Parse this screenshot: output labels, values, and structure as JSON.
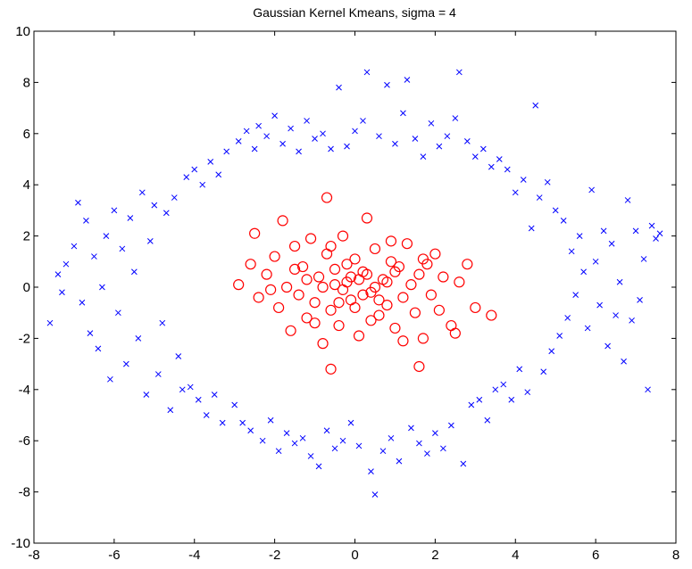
{
  "chart_data": {
    "type": "scatter",
    "title": "Gaussian Kernel Kmeans, sigma = 4",
    "xlabel": "",
    "ylabel": "",
    "xlim": [
      -8,
      8
    ],
    "ylim": [
      -10,
      10
    ],
    "xticks": [
      "-8",
      "-6",
      "-4",
      "-2",
      "0",
      "2",
      "4",
      "6",
      "8"
    ],
    "yticks": [
      "-10",
      "-8",
      "-6",
      "-4",
      "-2",
      "0",
      "2",
      "4",
      "6",
      "8",
      "10"
    ],
    "grid": false,
    "legend": "none",
    "series": [
      {
        "marker": "x",
        "color": "#0000ff",
        "points": [
          [
            -7.6,
            -1.4
          ],
          [
            -7.4,
            0.5
          ],
          [
            -7.3,
            -0.2
          ],
          [
            -7.2,
            0.9
          ],
          [
            -7.0,
            1.6
          ],
          [
            -6.9,
            3.3
          ],
          [
            -6.8,
            -0.6
          ],
          [
            -6.7,
            2.6
          ],
          [
            -6.6,
            -1.8
          ],
          [
            -6.5,
            1.2
          ],
          [
            -6.4,
            -2.4
          ],
          [
            -6.3,
            0.0
          ],
          [
            -6.2,
            2.0
          ],
          [
            -6.1,
            -3.6
          ],
          [
            -6.0,
            3.0
          ],
          [
            -5.9,
            -1.0
          ],
          [
            -5.8,
            1.5
          ],
          [
            -5.7,
            -3.0
          ],
          [
            -5.6,
            2.7
          ],
          [
            -5.5,
            0.6
          ],
          [
            -5.4,
            -2.0
          ],
          [
            -5.3,
            3.7
          ],
          [
            -5.2,
            -4.2
          ],
          [
            -5.1,
            1.8
          ],
          [
            -5.0,
            3.2
          ],
          [
            -4.9,
            -3.4
          ],
          [
            -4.8,
            -1.4
          ],
          [
            -4.7,
            2.9
          ],
          [
            -4.6,
            -4.8
          ],
          [
            -4.5,
            3.5
          ],
          [
            -4.4,
            -2.7
          ],
          [
            -4.3,
            -4.0
          ],
          [
            -4.2,
            4.3
          ],
          [
            -4.1,
            -3.9
          ],
          [
            -4.0,
            4.6
          ],
          [
            -3.9,
            -4.4
          ],
          [
            -3.8,
            4.0
          ],
          [
            -3.7,
            -5.0
          ],
          [
            -3.6,
            4.9
          ],
          [
            -3.5,
            -4.2
          ],
          [
            -3.4,
            4.4
          ],
          [
            -3.3,
            -5.3
          ],
          [
            -3.2,
            5.3
          ],
          [
            -3.0,
            -4.6
          ],
          [
            -2.9,
            5.7
          ],
          [
            -2.8,
            -5.3
          ],
          [
            -2.7,
            6.1
          ],
          [
            -2.6,
            -5.6
          ],
          [
            -2.5,
            5.4
          ],
          [
            -2.4,
            6.3
          ],
          [
            -2.3,
            -6.0
          ],
          [
            -2.2,
            5.9
          ],
          [
            -2.1,
            -5.2
          ],
          [
            -2.0,
            6.7
          ],
          [
            -1.9,
            -6.4
          ],
          [
            -1.8,
            5.6
          ],
          [
            -1.7,
            -5.7
          ],
          [
            -1.6,
            6.2
          ],
          [
            -1.5,
            -6.1
          ],
          [
            -1.4,
            5.3
          ],
          [
            -1.3,
            -5.9
          ],
          [
            -1.2,
            6.5
          ],
          [
            -1.1,
            -6.6
          ],
          [
            -1.0,
            5.8
          ],
          [
            -0.9,
            -7.0
          ],
          [
            -0.8,
            6.0
          ],
          [
            -0.7,
            -5.6
          ],
          [
            -0.6,
            5.4
          ],
          [
            -0.5,
            -6.3
          ],
          [
            -0.4,
            7.8
          ],
          [
            -0.3,
            -6.0
          ],
          [
            -0.2,
            5.5
          ],
          [
            -0.1,
            -5.3
          ],
          [
            0.0,
            6.1
          ],
          [
            0.1,
            -6.2
          ],
          [
            0.2,
            6.5
          ],
          [
            0.3,
            8.4
          ],
          [
            0.4,
            -7.2
          ],
          [
            0.5,
            -8.1
          ],
          [
            0.6,
            5.9
          ],
          [
            0.7,
            -6.4
          ],
          [
            0.8,
            7.9
          ],
          [
            0.9,
            -5.9
          ],
          [
            1.0,
            5.6
          ],
          [
            1.1,
            -6.8
          ],
          [
            1.2,
            6.8
          ],
          [
            1.3,
            8.1
          ],
          [
            1.4,
            -5.5
          ],
          [
            1.5,
            5.8
          ],
          [
            1.6,
            -6.1
          ],
          [
            1.7,
            5.1
          ],
          [
            1.8,
            -6.5
          ],
          [
            1.9,
            6.4
          ],
          [
            2.0,
            -5.7
          ],
          [
            2.1,
            5.5
          ],
          [
            2.2,
            -6.3
          ],
          [
            2.3,
            5.9
          ],
          [
            2.4,
            -5.4
          ],
          [
            2.5,
            6.6
          ],
          [
            2.6,
            8.4
          ],
          [
            2.7,
            -6.9
          ],
          [
            2.8,
            5.7
          ],
          [
            2.9,
            -4.6
          ],
          [
            3.0,
            5.1
          ],
          [
            3.1,
            -4.4
          ],
          [
            3.2,
            5.4
          ],
          [
            3.3,
            -5.2
          ],
          [
            3.4,
            4.7
          ],
          [
            3.5,
            -4.0
          ],
          [
            3.6,
            5.0
          ],
          [
            3.7,
            -3.8
          ],
          [
            3.8,
            4.6
          ],
          [
            3.9,
            -4.4
          ],
          [
            4.0,
            3.7
          ],
          [
            4.1,
            -3.2
          ],
          [
            4.2,
            4.2
          ],
          [
            4.3,
            -4.1
          ],
          [
            4.4,
            2.3
          ],
          [
            4.5,
            7.1
          ],
          [
            4.6,
            3.5
          ],
          [
            4.7,
            -3.3
          ],
          [
            4.8,
            4.1
          ],
          [
            4.9,
            -2.5
          ],
          [
            5.0,
            3.0
          ],
          [
            5.1,
            -1.9
          ],
          [
            5.2,
            2.6
          ],
          [
            5.3,
            -1.2
          ],
          [
            5.4,
            1.4
          ],
          [
            5.5,
            -0.3
          ],
          [
            5.6,
            2.0
          ],
          [
            5.7,
            0.6
          ],
          [
            5.8,
            -1.6
          ],
          [
            5.9,
            3.8
          ],
          [
            6.0,
            1.0
          ],
          [
            6.1,
            -0.7
          ],
          [
            6.2,
            2.2
          ],
          [
            6.3,
            -2.3
          ],
          [
            6.4,
            1.7
          ],
          [
            6.5,
            -1.1
          ],
          [
            6.6,
            0.2
          ],
          [
            6.7,
            -2.9
          ],
          [
            6.8,
            3.4
          ],
          [
            6.9,
            -1.3
          ],
          [
            7.0,
            2.2
          ],
          [
            7.1,
            -0.5
          ],
          [
            7.2,
            1.1
          ],
          [
            7.3,
            -4.0
          ],
          [
            7.4,
            2.4
          ],
          [
            7.5,
            1.9
          ],
          [
            7.6,
            2.1
          ]
        ]
      },
      {
        "marker": "o",
        "color": "#ff0000",
        "points": [
          [
            -2.9,
            0.1
          ],
          [
            -2.6,
            0.9
          ],
          [
            -2.5,
            2.1
          ],
          [
            -2.4,
            -0.4
          ],
          [
            -2.2,
            0.5
          ],
          [
            -2.0,
            1.2
          ],
          [
            -1.9,
            -0.8
          ],
          [
            -1.8,
            2.6
          ],
          [
            -1.7,
            0.0
          ],
          [
            -1.6,
            -1.7
          ],
          [
            -1.5,
            1.6
          ],
          [
            -1.4,
            -0.3
          ],
          [
            -1.3,
            0.8
          ],
          [
            -1.2,
            -1.2
          ],
          [
            -1.1,
            1.9
          ],
          [
            -1.0,
            -0.6
          ],
          [
            -0.9,
            0.4
          ],
          [
            -0.8,
            -2.2
          ],
          [
            -0.7,
            1.3
          ],
          [
            -0.6,
            -0.9
          ],
          [
            -0.5,
            0.7
          ],
          [
            -0.4,
            -1.5
          ],
          [
            -0.3,
            2.0
          ],
          [
            -0.2,
            0.2
          ],
          [
            -0.1,
            -0.5
          ],
          [
            0.0,
            1.1
          ],
          [
            0.1,
            -1.9
          ],
          [
            0.2,
            0.6
          ],
          [
            0.3,
            2.7
          ],
          [
            0.4,
            -0.2
          ],
          [
            0.5,
            1.5
          ],
          [
            0.6,
            -1.1
          ],
          [
            0.7,
            0.3
          ],
          [
            0.8,
            -0.7
          ],
          [
            0.9,
            1.0
          ],
          [
            1.0,
            -1.6
          ],
          [
            1.1,
            0.8
          ],
          [
            1.2,
            -0.4
          ],
          [
            1.3,
            1.7
          ],
          [
            1.4,
            0.1
          ],
          [
            1.5,
            -1.0
          ],
          [
            1.6,
            0.5
          ],
          [
            1.7,
            -2.0
          ],
          [
            1.8,
            0.9
          ],
          [
            1.9,
            -0.3
          ],
          [
            2.0,
            1.3
          ],
          [
            2.1,
            -0.9
          ],
          [
            2.2,
            0.4
          ],
          [
            2.4,
            -1.5
          ],
          [
            2.6,
            0.2
          ],
          [
            2.8,
            0.9
          ],
          [
            3.0,
            -0.8
          ],
          [
            3.4,
            -1.1
          ],
          [
            -0.7,
            3.5
          ],
          [
            -0.6,
            -3.2
          ],
          [
            1.6,
            -3.1
          ],
          [
            2.5,
            -1.8
          ],
          [
            -0.3,
            -0.1
          ],
          [
            0.2,
            -0.3
          ],
          [
            -0.5,
            0.1
          ],
          [
            0.5,
            0.0
          ],
          [
            0.0,
            -0.8
          ],
          [
            -0.2,
            0.9
          ],
          [
            0.3,
            0.5
          ],
          [
            0.8,
            0.2
          ],
          [
            -0.8,
            0.0
          ],
          [
            0.1,
            0.3
          ],
          [
            -0.4,
            -0.6
          ],
          [
            0.6,
            -0.5
          ],
          [
            -0.1,
            0.4
          ],
          [
            1.0,
            0.6
          ],
          [
            -1.2,
            0.3
          ],
          [
            0.4,
            -1.3
          ],
          [
            -0.6,
            1.6
          ],
          [
            0.9,
            1.8
          ],
          [
            -1.0,
            -1.4
          ],
          [
            1.2,
            -2.1
          ],
          [
            -1.5,
            0.7
          ],
          [
            1.7,
            1.1
          ],
          [
            -2.1,
            -0.1
          ]
        ]
      }
    ]
  }
}
